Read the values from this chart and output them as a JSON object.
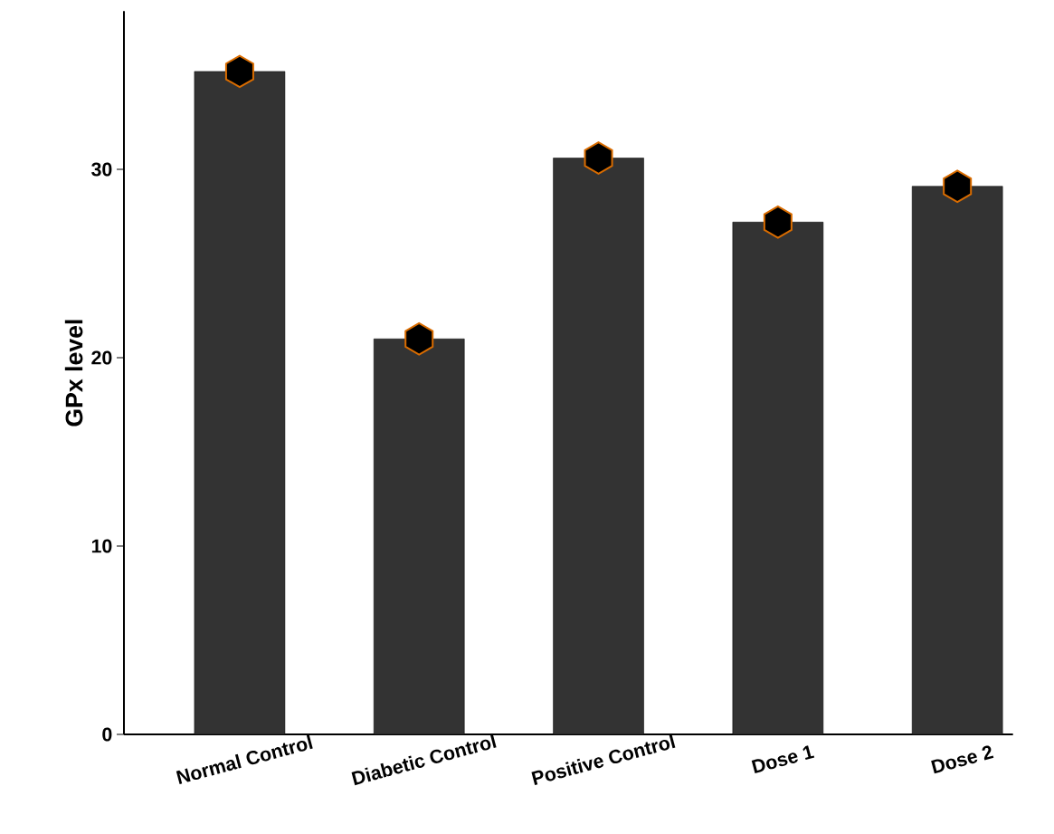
{
  "chart_data": {
    "type": "bar",
    "ylabel": "GPx level",
    "categories": [
      "Normal Control",
      "Diabetic Control",
      "Positive Control",
      "Dose 1",
      "Dose 2"
    ],
    "series": [
      {
        "color": "#333333",
        "values": [
          35.2,
          21.0,
          30.6,
          27.2,
          29.1
        ]
      },
      {
        "type": "scatter",
        "color": "#000000",
        "x": [
          "Normal Control",
          "Diabetic Control",
          "Positive Control",
          "Dose 1",
          "Dose 2"
        ],
        "values": [
          35.2,
          21.0,
          30.6,
          27.2,
          29.1
        ]
      }
    ],
    "ylim": [
      0,
      38.4
    ],
    "yticks": [
      0,
      10,
      20,
      30
    ],
    "grid": false
  }
}
